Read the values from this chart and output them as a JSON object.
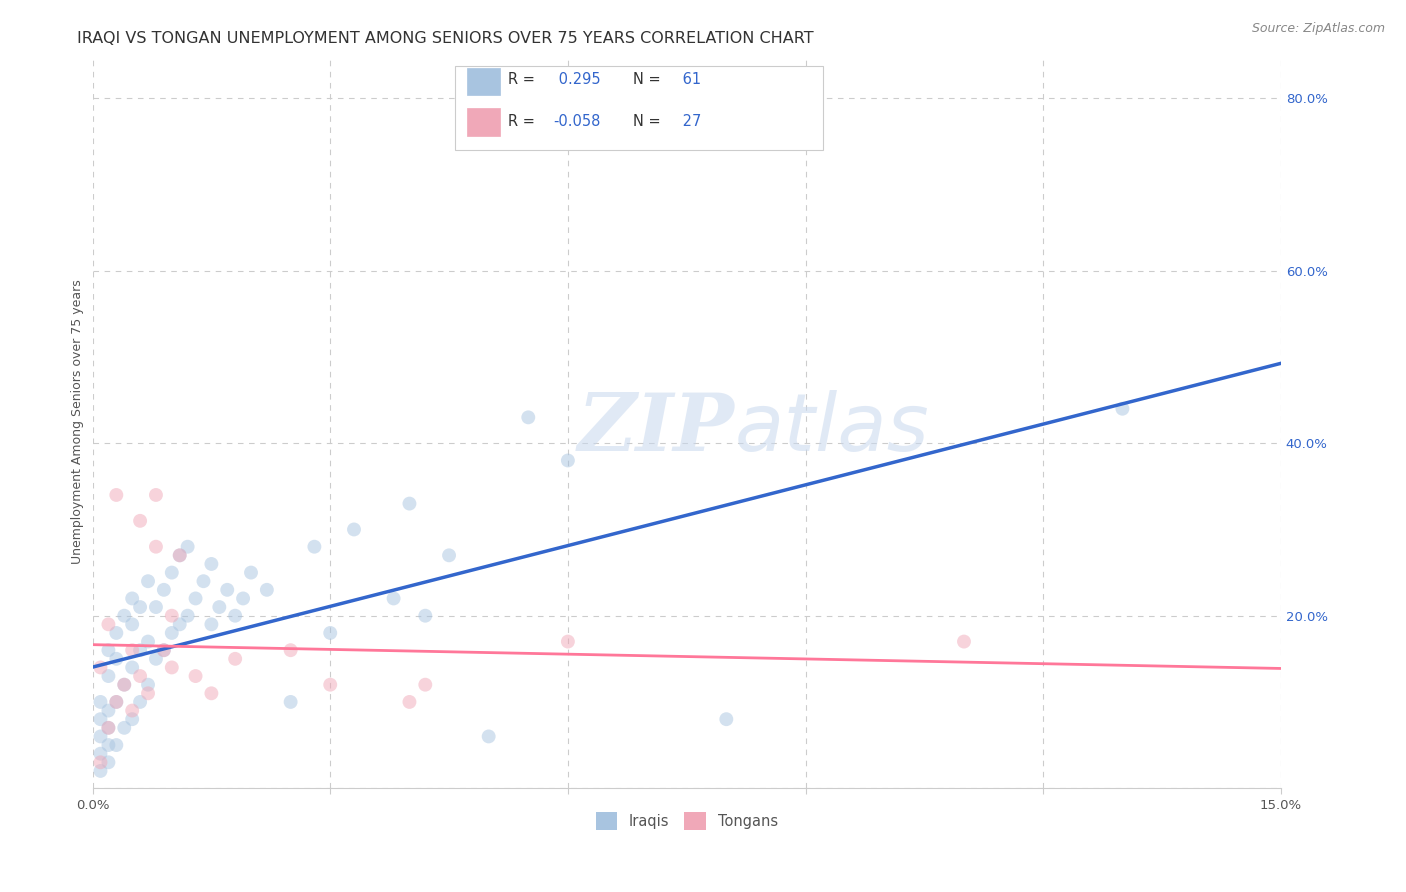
{
  "title": "IRAQI VS TONGAN UNEMPLOYMENT AMONG SENIORS OVER 75 YEARS CORRELATION CHART",
  "source": "Source: ZipAtlas.com",
  "ylabel": "Unemployment Among Seniors over 75 years",
  "xlim": [
    0.0,
    0.15
  ],
  "ylim": [
    0.0,
    0.85
  ],
  "xticks": [
    0.0,
    0.03,
    0.06,
    0.09,
    0.12,
    0.15
  ],
  "xticklabels": [
    "0.0%",
    "",
    "",
    "",
    "",
    "15.0%"
  ],
  "yticks_right": [
    0.0,
    0.2,
    0.4,
    0.6,
    0.8
  ],
  "yticklabels_right": [
    "",
    "20.0%",
    "40.0%",
    "60.0%",
    "80.0%"
  ],
  "grid_color": "#cccccc",
  "background_color": "#ffffff",
  "watermark_zip": "ZIP",
  "watermark_atlas": "atlas",
  "iraqi_color": "#a8c4e0",
  "tongan_color": "#f0a8b8",
  "iraqi_line_color": "#3366cc",
  "tongan_line_color": "#ff7799",
  "legend_text_color": "#3366cc",
  "iraqi_R": "0.295",
  "iraqi_N": "61",
  "tongan_R": "-0.058",
  "tongan_N": "27",
  "iraqi_scatter_x": [
    0.001,
    0.001,
    0.001,
    0.001,
    0.001,
    0.002,
    0.002,
    0.002,
    0.002,
    0.002,
    0.002,
    0.003,
    0.003,
    0.003,
    0.003,
    0.004,
    0.004,
    0.004,
    0.005,
    0.005,
    0.005,
    0.005,
    0.006,
    0.006,
    0.006,
    0.007,
    0.007,
    0.007,
    0.008,
    0.008,
    0.009,
    0.009,
    0.01,
    0.01,
    0.011,
    0.011,
    0.012,
    0.012,
    0.013,
    0.014,
    0.015,
    0.015,
    0.016,
    0.017,
    0.018,
    0.019,
    0.02,
    0.022,
    0.025,
    0.028,
    0.03,
    0.033,
    0.038,
    0.04,
    0.042,
    0.045,
    0.05,
    0.055,
    0.06,
    0.08,
    0.13
  ],
  "iraqi_scatter_y": [
    0.02,
    0.04,
    0.06,
    0.08,
    0.1,
    0.03,
    0.05,
    0.07,
    0.09,
    0.13,
    0.16,
    0.05,
    0.1,
    0.15,
    0.18,
    0.07,
    0.12,
    0.2,
    0.08,
    0.14,
    0.19,
    0.22,
    0.1,
    0.16,
    0.21,
    0.12,
    0.17,
    0.24,
    0.15,
    0.21,
    0.16,
    0.23,
    0.18,
    0.25,
    0.19,
    0.27,
    0.2,
    0.28,
    0.22,
    0.24,
    0.19,
    0.26,
    0.21,
    0.23,
    0.2,
    0.22,
    0.25,
    0.23,
    0.1,
    0.28,
    0.18,
    0.3,
    0.22,
    0.33,
    0.2,
    0.27,
    0.06,
    0.43,
    0.38,
    0.08,
    0.44
  ],
  "tongan_scatter_x": [
    0.001,
    0.001,
    0.002,
    0.002,
    0.003,
    0.003,
    0.004,
    0.005,
    0.005,
    0.006,
    0.006,
    0.007,
    0.008,
    0.008,
    0.009,
    0.01,
    0.01,
    0.011,
    0.013,
    0.015,
    0.018,
    0.025,
    0.03,
    0.04,
    0.042,
    0.06,
    0.11
  ],
  "tongan_scatter_y": [
    0.03,
    0.14,
    0.07,
    0.19,
    0.1,
    0.34,
    0.12,
    0.09,
    0.16,
    0.13,
    0.31,
    0.11,
    0.28,
    0.34,
    0.16,
    0.2,
    0.14,
    0.27,
    0.13,
    0.11,
    0.15,
    0.16,
    0.12,
    0.1,
    0.12,
    0.17,
    0.17
  ],
  "marker_size": 100,
  "alpha": 0.5,
  "title_fontsize": 11.5,
  "axis_fontsize": 9,
  "tick_fontsize": 9.5,
  "legend_fontsize": 10.5,
  "source_fontsize": 9
}
